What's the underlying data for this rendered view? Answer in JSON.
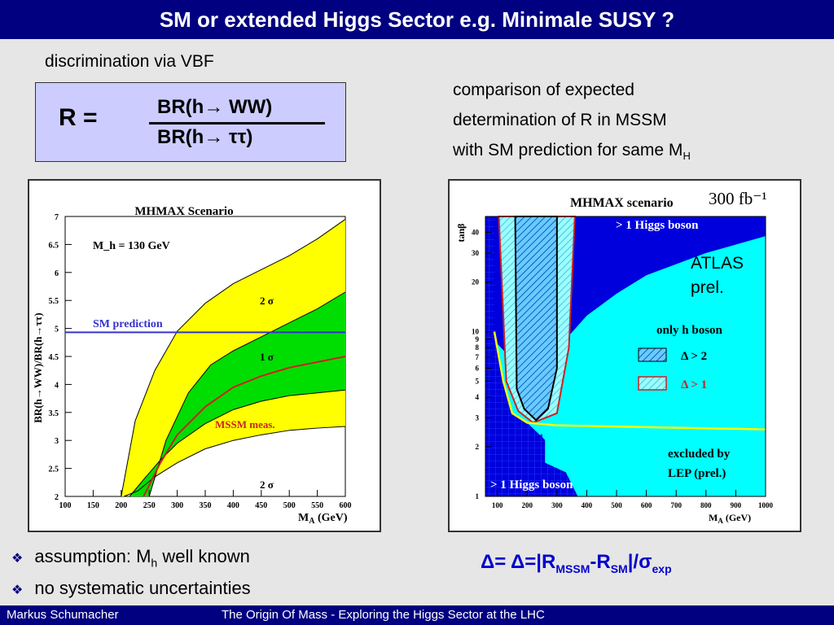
{
  "slide": {
    "title": "SM or extended Higgs Sector e.g. Minimale SUSY ?",
    "subtitle": "discrimination via VBF",
    "ratio": {
      "label": "R =",
      "numerator": "BR(h→ WW)",
      "denominator": "BR(h→ ττ)"
    },
    "comparison_lines": [
      "comparison of expected",
      "determination of  R in MSSM",
      "with SM prediction for same M"
    ],
    "comparison_sub": "H",
    "bullets": [
      "assumption: M",
      "no systematic uncertainties"
    ],
    "bullet1_sub": "h",
    "bullet1_tail": " well known",
    "formula": {
      "pre": "Δ= Δ=|R",
      "sub1": "MSSM",
      "mid": "-R",
      "sub2": "SM",
      "post": "|/σ",
      "sub3": "exp"
    },
    "footer_author": "Markus  Schumacher",
    "footer_title": "The Origin Of Mass - Exploring the Higgs Sector at the LHC"
  },
  "colors": {
    "title_bg": "#000080",
    "box_bg": "#ccccff",
    "yellow": "#ffff00",
    "green": "#00dd00",
    "blue": "#0000dd",
    "cyan": "#00ffff",
    "sm_line": "#3333cc",
    "mssm_line": "#cc2222"
  },
  "chart_data": [
    {
      "type": "area",
      "title": "MHMAX Scenario",
      "xlabel": "M_A (GeV)",
      "ylabel": "BR(h→WW)/BR(h→ττ)",
      "xlim": [
        100,
        600
      ],
      "ylim": [
        2,
        7
      ],
      "xticks": [
        100,
        150,
        200,
        250,
        300,
        350,
        400,
        450,
        500,
        550,
        600
      ],
      "yticks": [
        2,
        2.5,
        3,
        3.5,
        4,
        4.5,
        5,
        5.5,
        6,
        6.5,
        7
      ],
      "annotations": [
        "M_h = 130 GeV",
        "SM prediction",
        "2 σ",
        "1 σ",
        "MSSM meas.",
        "2 σ"
      ],
      "sm_prediction": 4.93,
      "series": [
        {
          "name": "2 σ",
          "x": [
            200,
            225,
            260,
            300,
            350,
            400,
            450,
            500,
            550,
            600
          ],
          "y": [
            2.0,
            3.35,
            4.25,
            4.95,
            5.45,
            5.8,
            6.05,
            6.3,
            6.6,
            6.95
          ]
        },
        {
          "name": "1 σ",
          "x": [
            250,
            280,
            320,
            360,
            400,
            450,
            500,
            550,
            600
          ],
          "y": [
            2.0,
            3.0,
            3.85,
            4.35,
            4.6,
            4.85,
            5.1,
            5.35,
            5.65
          ]
        },
        {
          "name": "MSSM meas.",
          "x": [
            240,
            270,
            300,
            350,
            400,
            450,
            500,
            550,
            600
          ],
          "y": [
            2.0,
            2.6,
            3.1,
            3.6,
            3.95,
            4.15,
            4.3,
            4.4,
            4.5
          ]
        },
        {
          "name": "1 σ",
          "x": [
            215,
            240,
            270,
            300,
            350,
            400,
            450,
            500,
            550,
            600
          ],
          "y": [
            2.0,
            2.3,
            2.65,
            2.95,
            3.3,
            3.55,
            3.7,
            3.8,
            3.85,
            3.9
          ]
        },
        {
          "name": "2 σ",
          "x": [
            205,
            230,
            260,
            300,
            350,
            400,
            450,
            500,
            550,
            600
          ],
          "y": [
            2.0,
            2.1,
            2.35,
            2.6,
            2.85,
            3.0,
            3.1,
            3.18,
            3.22,
            3.25
          ]
        }
      ]
    },
    {
      "type": "area",
      "title": "MHMAX scenario",
      "annotations": [
        "300 fb⁻¹",
        "> 1 Higgs boson",
        "ATLAS",
        "prel.",
        "only h boson",
        "Δ > 2",
        "Δ > 1",
        "excluded by",
        "LEP (prel.)",
        "> 1 Higgs boson"
      ],
      "xlabel": "M_A (GeV)",
      "ylabel": "tanβ",
      "xlim": [
        60,
        1000
      ],
      "ylim": [
        1,
        50
      ],
      "log_y": true,
      "xticks": [
        100,
        200,
        300,
        400,
        500,
        600,
        700,
        800,
        900,
        1000
      ],
      "yticks": [
        1,
        2,
        3,
        4,
        5,
        6,
        7,
        8,
        9,
        10,
        20,
        30,
        40
      ],
      "series": [
        {
          "name": "LEP excluded boundary",
          "x": [
            90,
            120,
            150,
            200,
            300,
            1000
          ],
          "y": [
            10,
            5,
            3.2,
            2.8,
            2.7,
            2.55
          ]
        },
        {
          "name": "Δ > 2",
          "x": [
            160,
            165,
            190,
            230,
            270,
            300,
            300
          ],
          "y": [
            50,
            4.5,
            3.4,
            2.9,
            3.4,
            6,
            50
          ]
        },
        {
          "name": "Δ > 1",
          "x": [
            105,
            130,
            170,
            220,
            300,
            340,
            360
          ],
          "y": [
            50,
            5,
            3.3,
            2.8,
            3.2,
            8,
            50
          ]
        }
      ]
    }
  ]
}
